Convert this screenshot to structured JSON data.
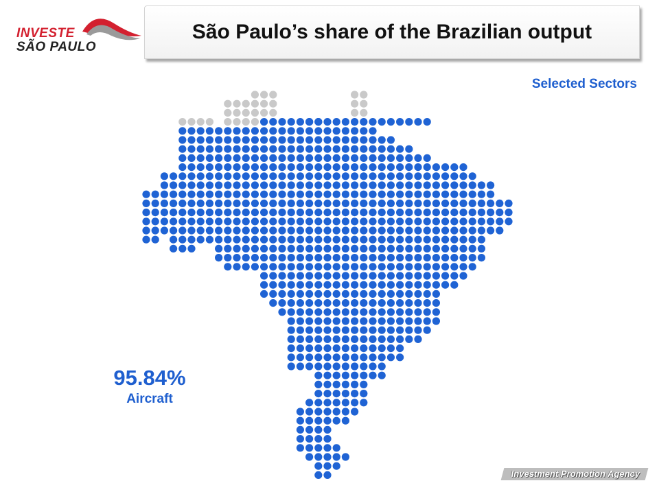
{
  "logo": {
    "line1": "INVESTE",
    "line2": "SÃO PAULO"
  },
  "title": "São Paulo’s share of the Brazilian output",
  "subtitle": "Selected Sectors",
  "stat": {
    "value": "95.84%",
    "label": "Aircraft",
    "share": 0.9584
  },
  "footer": {
    "text": "Investment Promotion Agency"
  },
  "colors": {
    "filled": "#1f63d4",
    "remaining": "#c9c9c9",
    "accent": "#d3202f",
    "text_blue": "#1f5fcf"
  }
}
